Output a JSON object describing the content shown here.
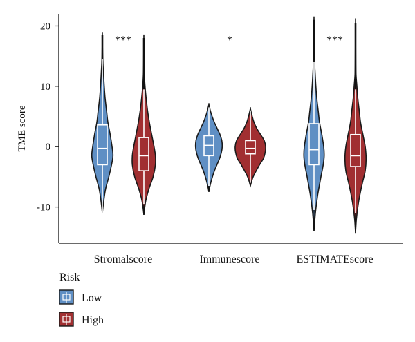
{
  "chart_data": {
    "type": "violin",
    "ylabel": "TME score",
    "xlabel": "",
    "ylim": [
      -16,
      22
    ],
    "yticks": [
      -10,
      0,
      10,
      20
    ],
    "categories": [
      "Stromalscore",
      "Immunescore",
      "ESTIMATEscore"
    ],
    "significance": [
      "***",
      "*",
      "***"
    ],
    "legend": {
      "title": "Risk",
      "position": "bottom-left",
      "entries": [
        "Low",
        "High"
      ]
    },
    "colors": {
      "Low": "#5f8fc4",
      "High": "#a12f31"
    },
    "series": [
      {
        "name": "Low",
        "groups": [
          {
            "category": "Stromalscore",
            "min": -11,
            "q1": -3,
            "median": -0.3,
            "q3": 3.6,
            "max": 18.5,
            "whisker_low": -11,
            "whisker_high": 14.5,
            "profile": [
              [
                -11,
                0.0
              ],
              [
                -9,
                0.03
              ],
              [
                -7,
                0.07
              ],
              [
                -5,
                0.14
              ],
              [
                -3,
                0.2
              ],
              [
                -1.5,
                0.23
              ],
              [
                0,
                0.21
              ],
              [
                2,
                0.17
              ],
              [
                4,
                0.12
              ],
              [
                6,
                0.09
              ],
              [
                8,
                0.06
              ],
              [
                10,
                0.04
              ],
              [
                12,
                0.025
              ],
              [
                14,
                0.012
              ],
              [
                16,
                0.004
              ],
              [
                18.5,
                0.0
              ]
            ]
          },
          {
            "category": "Immunescore",
            "min": -7.5,
            "q1": -1.5,
            "median": 0.2,
            "q3": 1.8,
            "max": 7,
            "whisker_low": -6.5,
            "whisker_high": 6.5,
            "profile": [
              [
                -7.5,
                0.0
              ],
              [
                -6,
                0.04
              ],
              [
                -4,
                0.12
              ],
              [
                -2,
                0.23
              ],
              [
                -1,
                0.27
              ],
              [
                0,
                0.29
              ],
              [
                1,
                0.28
              ],
              [
                2,
                0.24
              ],
              [
                3,
                0.18
              ],
              [
                4,
                0.12
              ],
              [
                5,
                0.07
              ],
              [
                6,
                0.03
              ],
              [
                7,
                0.0
              ]
            ]
          },
          {
            "category": "ESTIMATEscore",
            "min": -14,
            "q1": -3,
            "median": -0.5,
            "q3": 3.8,
            "max": 21,
            "whisker_low": -10.5,
            "whisker_high": 14,
            "profile": [
              [
                -14,
                0.0
              ],
              [
                -11,
                0.03
              ],
              [
                -8,
                0.08
              ],
              [
                -5,
                0.15
              ],
              [
                -3,
                0.2
              ],
              [
                -1.5,
                0.22
              ],
              [
                0,
                0.21
              ],
              [
                2,
                0.17
              ],
              [
                4,
                0.12
              ],
              [
                6,
                0.09
              ],
              [
                8,
                0.06
              ],
              [
                10,
                0.04
              ],
              [
                12,
                0.025
              ],
              [
                14,
                0.012
              ],
              [
                17,
                0.004
              ],
              [
                21,
                0.0
              ]
            ]
          }
        ]
      },
      {
        "name": "High",
        "groups": [
          {
            "category": "Stromalscore",
            "min": -11.3,
            "q1": -4,
            "median": -1.5,
            "q3": 1.5,
            "max": 18,
            "whisker_low": -9.5,
            "whisker_high": 9.5,
            "profile": [
              [
                -11.3,
                0.0
              ],
              [
                -9,
                0.04
              ],
              [
                -7,
                0.11
              ],
              [
                -5,
                0.2
              ],
              [
                -3,
                0.25
              ],
              [
                -1.5,
                0.25
              ],
              [
                0,
                0.22
              ],
              [
                2,
                0.17
              ],
              [
                4,
                0.12
              ],
              [
                6,
                0.08
              ],
              [
                8,
                0.05
              ],
              [
                10,
                0.025
              ],
              [
                12,
                0.01
              ],
              [
                14,
                0.005
              ],
              [
                18,
                0.0
              ]
            ]
          },
          {
            "category": "Immunescore",
            "min": -6.5,
            "q1": -1.2,
            "median": -0.3,
            "q3": 1,
            "max": 6.3,
            "whisker_low": -6,
            "whisker_high": 6,
            "profile": [
              [
                -6.5,
                0.0
              ],
              [
                -5,
                0.06
              ],
              [
                -3,
                0.2
              ],
              [
                -2,
                0.28
              ],
              [
                -1,
                0.32
              ],
              [
                0,
                0.33
              ],
              [
                1,
                0.3
              ],
              [
                2,
                0.22
              ],
              [
                3,
                0.14
              ],
              [
                4,
                0.08
              ],
              [
                5,
                0.04
              ],
              [
                6.3,
                0.0
              ]
            ]
          },
          {
            "category": "ESTIMATEscore",
            "min": -14.3,
            "q1": -3.3,
            "median": -1.5,
            "q3": 2,
            "max": 20.5,
            "whisker_low": -11,
            "whisker_high": 9.5,
            "profile": [
              [
                -14.3,
                0.0
              ],
              [
                -12,
                0.02
              ],
              [
                -9,
                0.07
              ],
              [
                -6,
                0.15
              ],
              [
                -4,
                0.21
              ],
              [
                -2,
                0.23
              ],
              [
                0,
                0.21
              ],
              [
                2,
                0.16
              ],
              [
                4,
                0.11
              ],
              [
                6,
                0.08
              ],
              [
                8,
                0.05
              ],
              [
                10,
                0.03
              ],
              [
                12,
                0.01
              ],
              [
                15,
                0.004
              ],
              [
                20.5,
                0.0
              ]
            ]
          }
        ]
      }
    ]
  }
}
